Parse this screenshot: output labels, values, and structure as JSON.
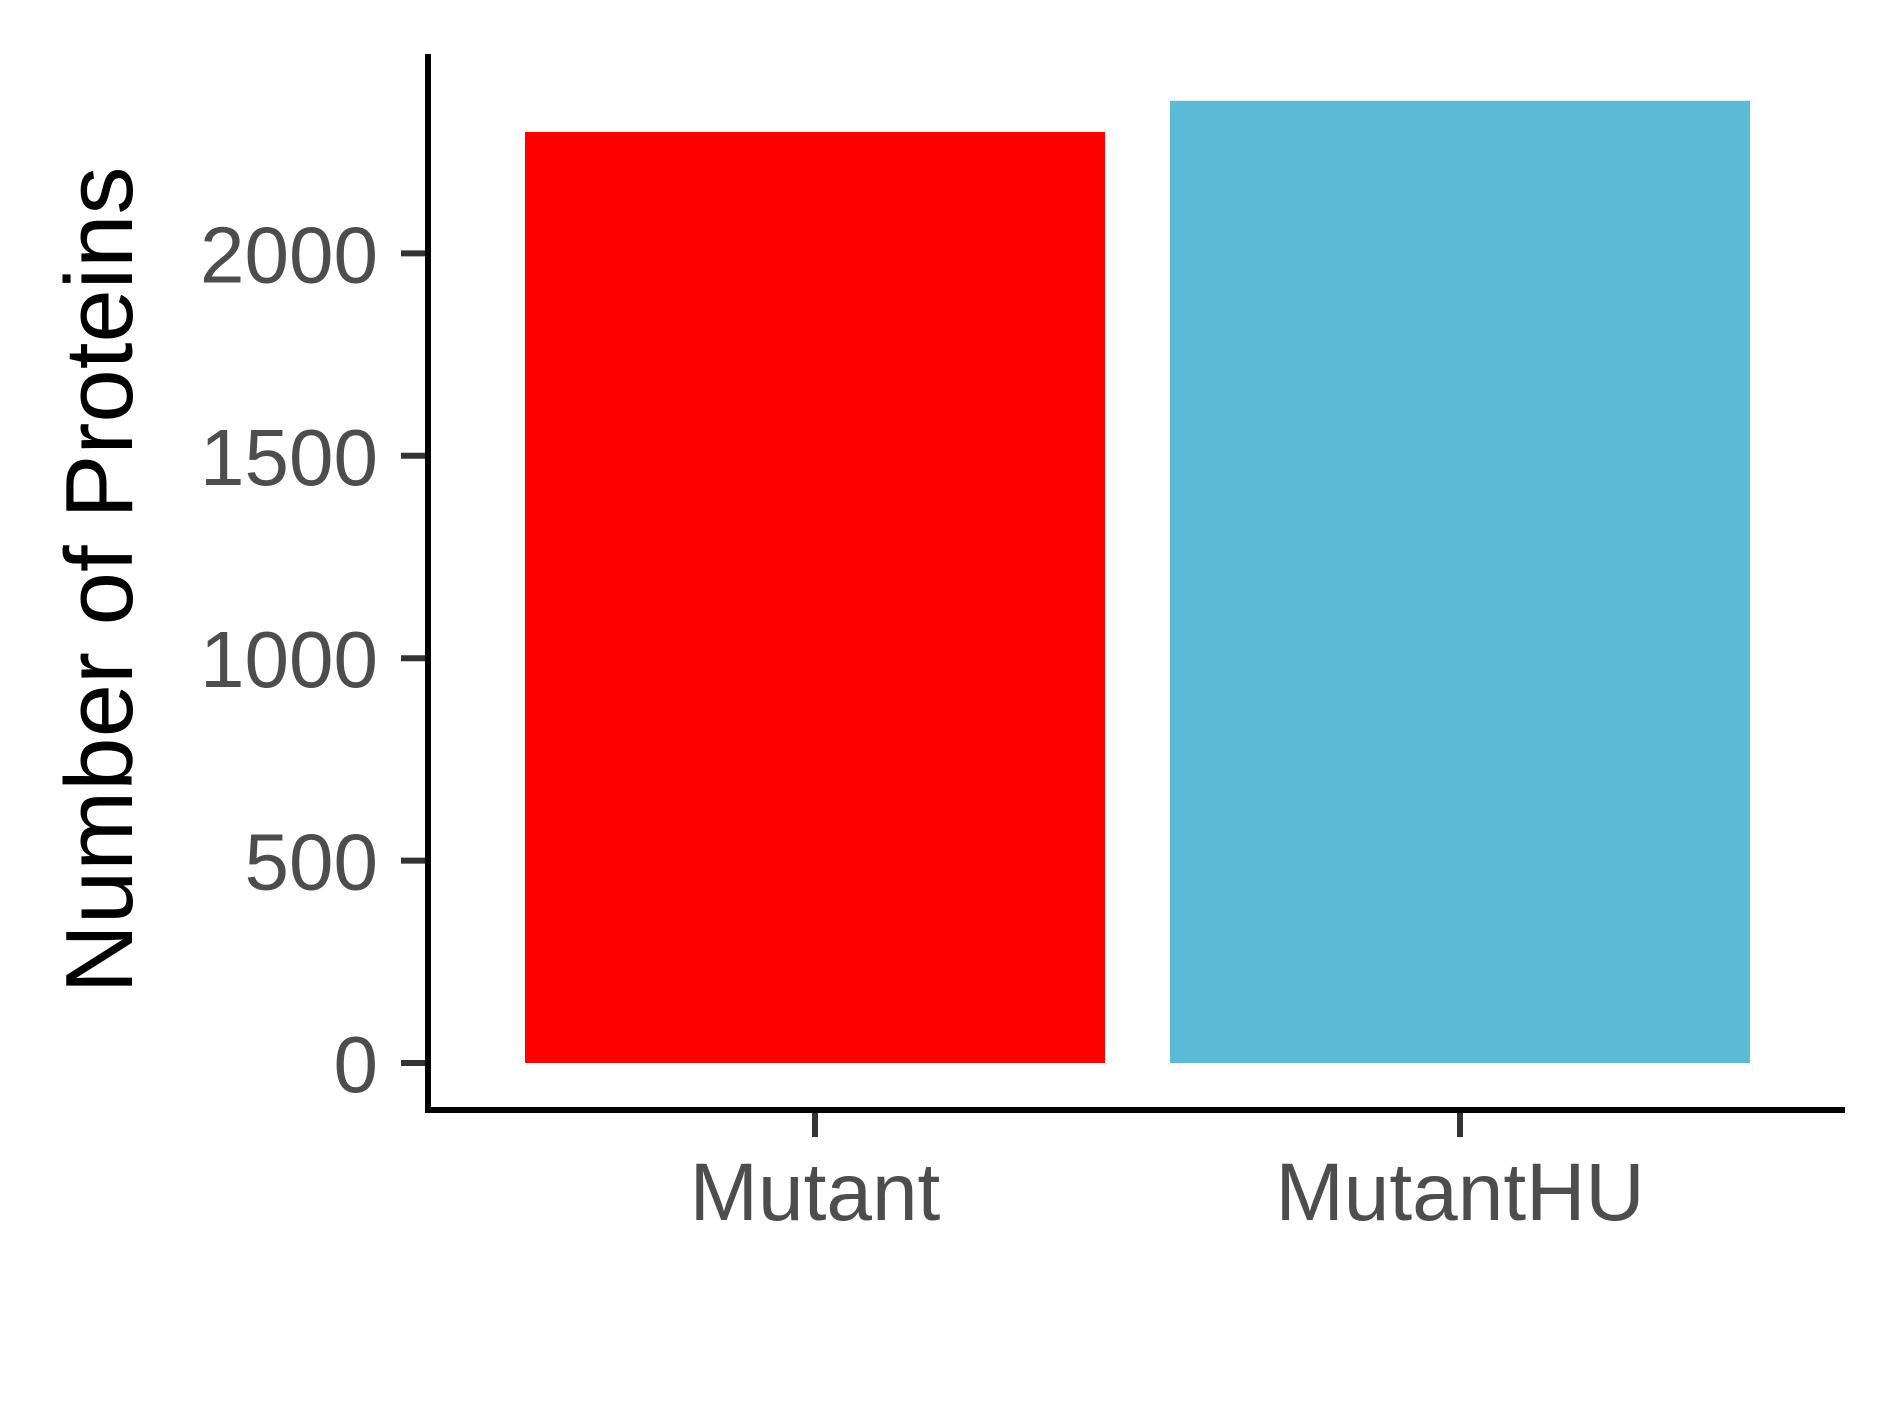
{
  "chart_data": {
    "type": "bar",
    "categories": [
      "Mutant",
      "MutantHU"
    ],
    "values": [
      2300,
      2377
    ],
    "colors": [
      "#ff0000",
      "#5bbad5"
    ],
    "title": "",
    "xlabel": "",
    "ylabel": "Number of Proteins",
    "ylim": [
      0,
      2450
    ],
    "yticks": [
      0,
      500,
      1000,
      1500,
      2000
    ],
    "ytick_labels": [
      "0",
      "500",
      "1000",
      "1500",
      "2000"
    ],
    "grid": false,
    "legend": "none"
  }
}
